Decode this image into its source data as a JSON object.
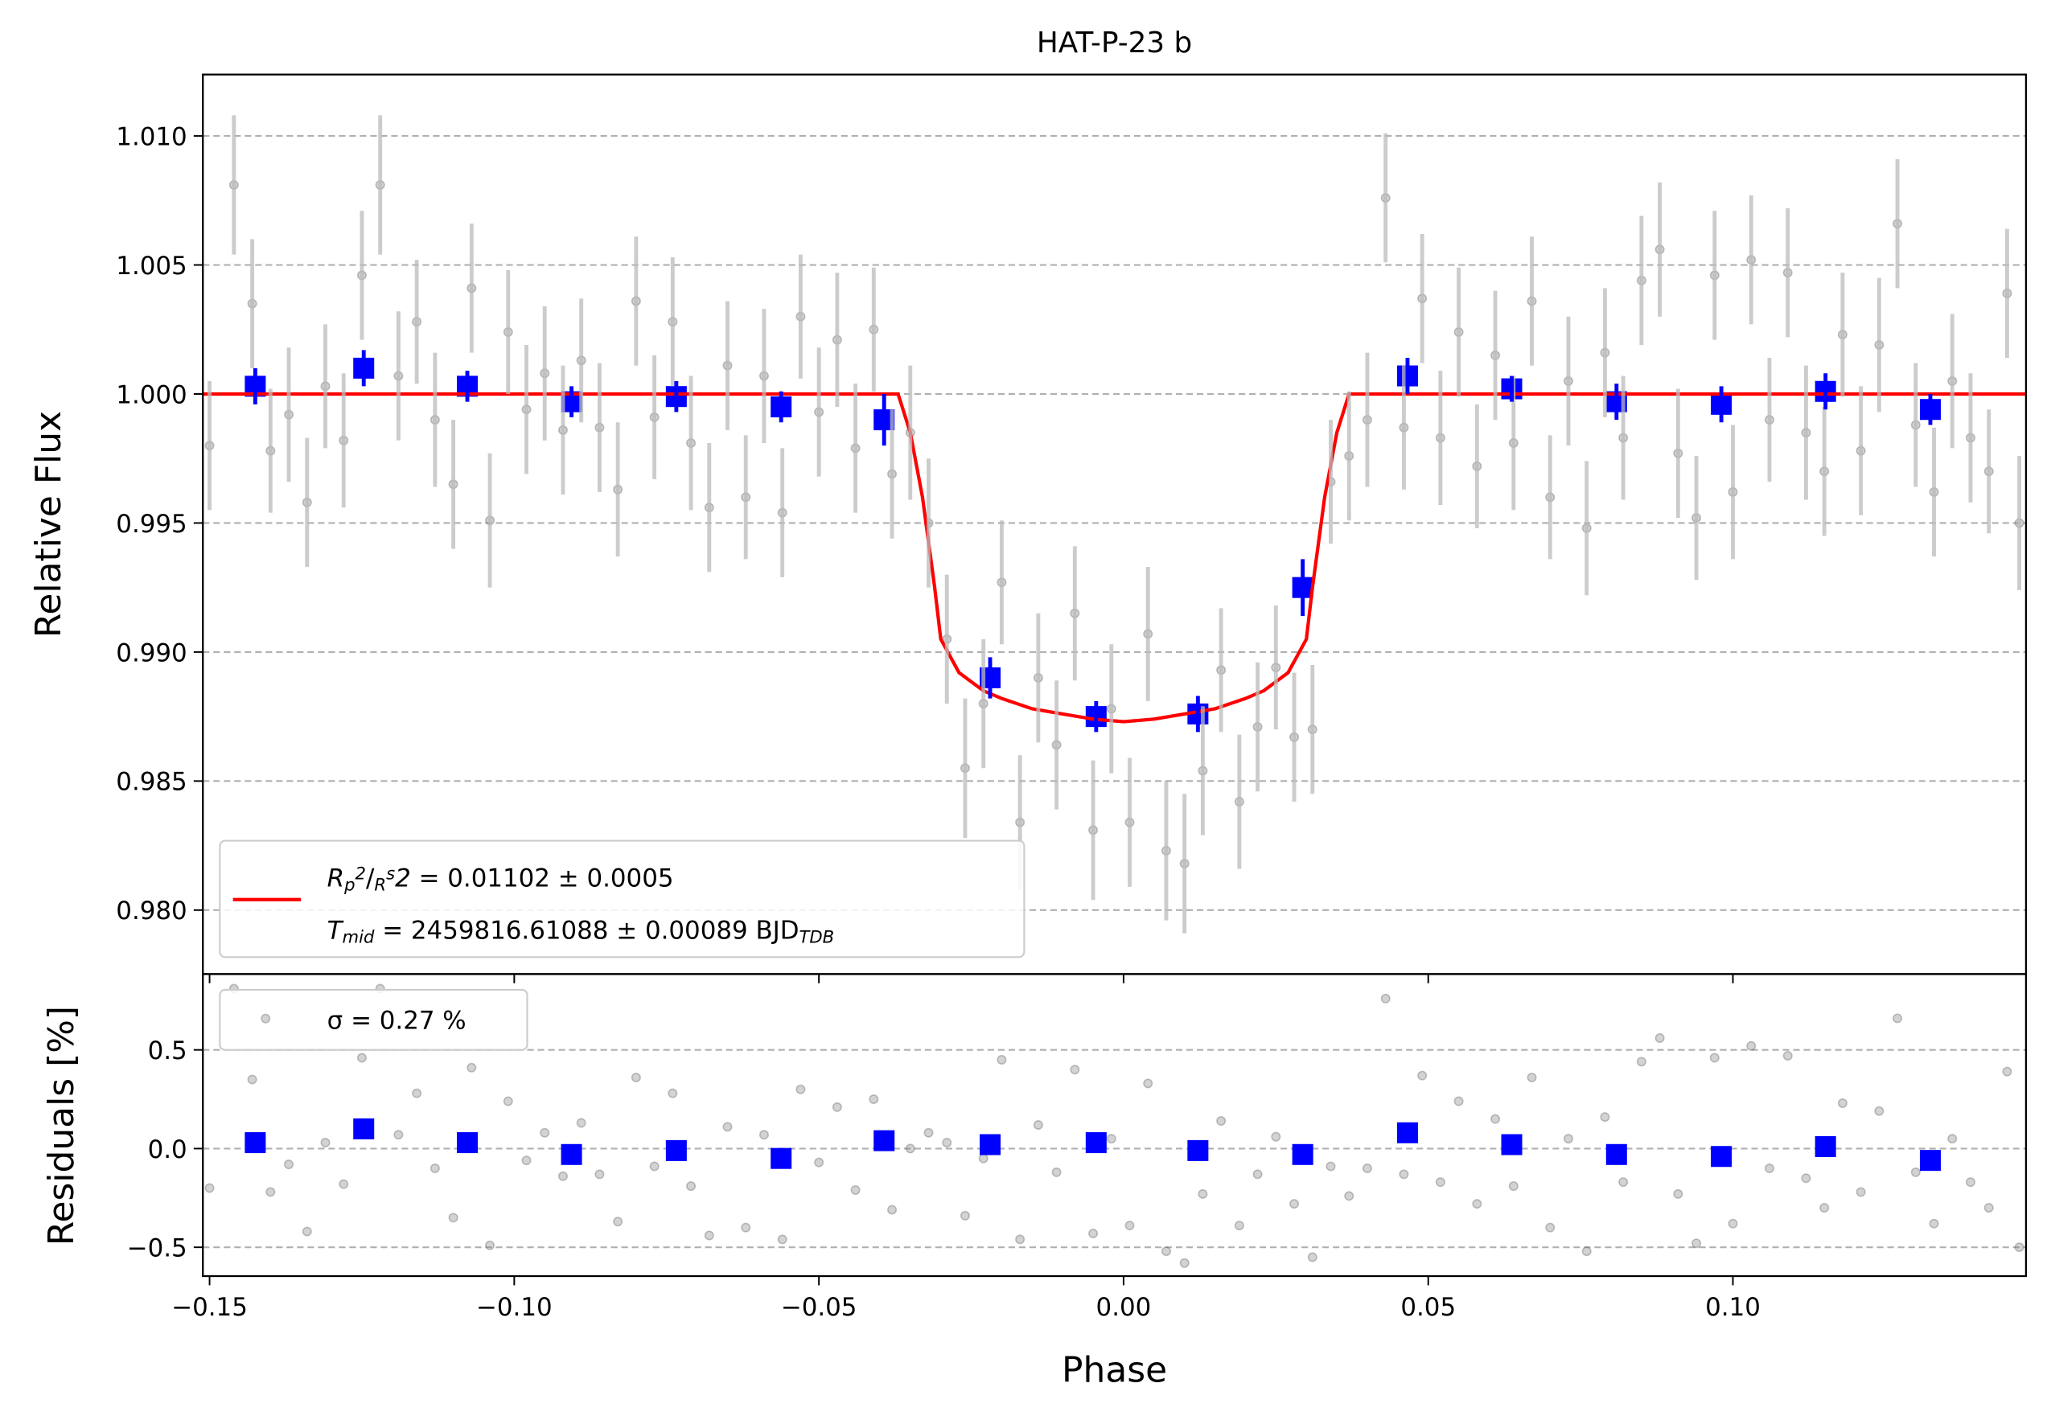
{
  "chart_data": [
    {
      "type": "scatter",
      "title": "HAT-P-23 b",
      "ylabel": "Relative Flux",
      "xlim": [
        -0.1511,
        0.1481
      ],
      "ylim": [
        0.97752,
        1.01238
      ],
      "yticks": [
        {
          "value": 0.98,
          "label": "0.980"
        },
        {
          "value": 0.985,
          "label": "0.985"
        },
        {
          "value": 0.99,
          "label": "0.990"
        },
        {
          "value": 0.995,
          "label": "0.995"
        },
        {
          "value": 1.0,
          "label": "1.000"
        },
        {
          "value": 1.005,
          "label": "1.005"
        },
        {
          "value": 1.01,
          "label": "1.010"
        }
      ],
      "grid": true,
      "legend": "lower left",
      "series": [
        {
          "type": "points",
          "marker": "circle",
          "color": "#808080",
          "x": [
            -0.15,
            -0.146,
            -0.143,
            -0.14,
            -0.137,
            -0.134,
            -0.131,
            -0.128,
            -0.125,
            -0.122,
            -0.119,
            -0.116,
            -0.113,
            -0.11,
            -0.107,
            -0.104,
            -0.101,
            -0.098,
            -0.095,
            -0.092,
            -0.089,
            -0.086,
            -0.083,
            -0.08,
            -0.077,
            -0.074,
            -0.071,
            -0.068,
            -0.065,
            -0.062,
            -0.059,
            -0.056,
            -0.053,
            -0.05,
            -0.047,
            -0.044,
            -0.041,
            -0.038,
            -0.035,
            -0.032,
            -0.029,
            -0.026,
            -0.023,
            -0.02,
            -0.017,
            -0.014,
            -0.011,
            -0.008,
            -0.005,
            -0.002,
            0.001,
            0.004,
            0.007,
            0.01,
            0.013,
            0.016,
            0.019,
            0.022,
            0.025,
            0.028,
            0.031,
            0.034,
            0.037,
            0.04,
            0.043,
            0.046,
            0.049,
            0.052,
            0.055,
            0.058,
            0.061,
            0.064,
            0.067,
            0.07,
            0.073,
            0.076,
            0.079,
            0.082,
            0.085,
            0.088,
            0.091,
            0.094,
            0.097,
            0.1,
            0.103,
            0.106,
            0.109,
            0.112,
            0.115,
            0.118,
            0.121,
            0.124,
            0.127,
            0.13,
            0.133,
            0.136,
            0.139,
            0.142,
            0.145,
            0.147
          ],
          "values": [
            0.998,
            1.0081,
            1.0035,
            0.9978,
            0.9992,
            0.9958,
            1.0003,
            0.9982,
            1.0046,
            1.0081,
            1.0007,
            1.0028,
            0.999,
            0.9965,
            1.0041,
            0.9951,
            1.0024,
            0.9994,
            1.0008,
            0.9986,
            1.0013,
            0.9987,
            0.9963,
            1.0036,
            0.9991,
            1.0028,
            0.9981,
            0.9956,
            1.0011,
            0.996,
            1.0007,
            0.9954,
            1.003,
            0.9993,
            1.0021,
            0.9979,
            1.0025,
            0.9969,
            0.9985,
            0.995,
            0.9905,
            0.9855,
            0.988,
            0.9927,
            0.9834,
            0.989,
            0.9864,
            0.9915,
            0.9831,
            0.9878,
            0.9834,
            0.9907,
            0.9823,
            0.9818,
            0.9854,
            0.9893,
            0.9842,
            0.9871,
            0.9894,
            0.9867,
            0.987,
            0.9966,
            0.9976,
            0.999,
            1.0076,
            0.9987,
            1.0037,
            0.9983,
            1.0024,
            0.9972,
            1.0015,
            0.9981,
            1.0036,
            0.996,
            1.0005,
            0.9948,
            1.0016,
            0.9983,
            1.0044,
            1.0056,
            0.9977,
            0.9952,
            1.0046,
            0.9962,
            1.0052,
            0.999,
            1.0047,
            0.9985,
            0.997,
            1.0023,
            0.9978,
            1.0019,
            1.0066,
            0.9988,
            0.9962,
            1.0005,
            0.9983,
            0.997,
            1.0039,
            0.995
          ],
          "errors": [
            0.0025,
            0.0027,
            0.0025,
            0.0024,
            0.0026,
            0.0025,
            0.0024,
            0.0026,
            0.0025,
            0.0027,
            0.0025,
            0.0024,
            0.0026,
            0.0025,
            0.0025,
            0.0026,
            0.0024,
            0.0025,
            0.0026,
            0.0025,
            0.0024,
            0.0025,
            0.0026,
            0.0025,
            0.0024,
            0.0025,
            0.0026,
            0.0025,
            0.0025,
            0.0024,
            0.0026,
            0.0025,
            0.0024,
            0.0025,
            0.0026,
            0.0025,
            0.0024,
            0.0025,
            0.0026,
            0.0025,
            0.0025,
            0.0027,
            0.0025,
            0.0024,
            0.0026,
            0.0025,
            0.0025,
            0.0026,
            0.0027,
            0.0025,
            0.0025,
            0.0026,
            0.0027,
            0.0027,
            0.0025,
            0.0024,
            0.0026,
            0.0025,
            0.0024,
            0.0025,
            0.0025,
            0.0024,
            0.0025,
            0.0026,
            0.0025,
            0.0024,
            0.0025,
            0.0026,
            0.0025,
            0.0024,
            0.0025,
            0.0026,
            0.0025,
            0.0024,
            0.0025,
            0.0026,
            0.0025,
            0.0024,
            0.0025,
            0.0026,
            0.0025,
            0.0024,
            0.0025,
            0.0026,
            0.0025,
            0.0024,
            0.0025,
            0.0026,
            0.0025,
            0.0024,
            0.0025,
            0.0026,
            0.0025,
            0.0024,
            0.0025,
            0.0026,
            0.0025,
            0.0024,
            0.0025,
            0.0026
          ]
        },
        {
          "type": "points",
          "marker": "square",
          "color": "#0000ff",
          "x": [
            -0.1425,
            -0.1247,
            -0.1077,
            -0.0906,
            -0.0734,
            -0.0562,
            -0.0393,
            -0.0219,
            -0.0045,
            0.0122,
            0.0294,
            0.0466,
            0.0637,
            0.0809,
            0.0981,
            0.1152,
            0.1324
          ],
          "values": [
            1.0003,
            1.001,
            1.0003,
            0.9997,
            0.9999,
            0.9995,
            0.999,
            0.989,
            0.9875,
            0.9876,
            0.9925,
            1.0007,
            1.0002,
            0.9997,
            0.9996,
            1.0001,
            0.9994
          ],
          "errors": [
            0.0007,
            0.0007,
            0.0006,
            0.0006,
            0.0006,
            0.0006,
            0.001,
            0.0008,
            0.0006,
            0.0007,
            0.0011,
            0.0007,
            0.0005,
            0.0007,
            0.0007,
            0.0007,
            0.0006
          ]
        },
        {
          "type": "line",
          "color": "#ff0000",
          "name": [
            [
              "R",
              "p",
              "2",
              "/",
              "R",
              "s",
              "2",
              " = 0.01102 ± 0.0005"
            ],
            [
              "T",
              "mid",
              " = 2459816.61088 ± 0.00089 BJD",
              "TDB"
            ]
          ],
          "x": [
            -0.1511,
            -0.037,
            -0.035,
            -0.033,
            -0.031,
            -0.03,
            -0.027,
            -0.023,
            -0.02,
            -0.015,
            -0.01,
            -0.005,
            0.0,
            0.005,
            0.01,
            0.015,
            0.02,
            0.023,
            0.027,
            0.03,
            0.031,
            0.033,
            0.035,
            0.037,
            0.1481
          ],
          "values": [
            1.0,
            1.0,
            0.9985,
            0.996,
            0.9925,
            0.9905,
            0.9892,
            0.9885,
            0.9882,
            0.9878,
            0.9876,
            0.9874,
            0.9873,
            0.9874,
            0.9876,
            0.9878,
            0.9882,
            0.9885,
            0.9892,
            0.9905,
            0.9925,
            0.996,
            0.9985,
            1.0,
            1.0
          ]
        }
      ]
    },
    {
      "type": "scatter",
      "xlabel": "Phase",
      "ylabel": "Residuals [%]",
      "xlim": [
        -0.1511,
        0.1481
      ],
      "ylim": [
        -0.646,
        0.884
      ],
      "xticks": [
        {
          "value": -0.15,
          "label": "−0.15"
        },
        {
          "value": -0.1,
          "label": "−0.10"
        },
        {
          "value": -0.05,
          "label": "−0.05"
        },
        {
          "value": 0,
          "label": "0.00"
        },
        {
          "value": 0.05,
          "label": "0.05"
        },
        {
          "value": 0.1,
          "label": "0.10"
        }
      ],
      "yticks": [
        {
          "value": -0.5,
          "label": "−0.5"
        },
        {
          "value": 0,
          "label": "0.0"
        },
        0.5
      ],
      "grid": true,
      "legend": "upper left",
      "series": [
        {
          "type": "points",
          "marker": "circle",
          "color": "#808080",
          "name": "σ = 0.27 %",
          "x": [
            -0.15,
            -0.146,
            -0.143,
            -0.14,
            -0.137,
            -0.134,
            -0.131,
            -0.128,
            -0.125,
            -0.122,
            -0.119,
            -0.116,
            -0.113,
            -0.11,
            -0.107,
            -0.104,
            -0.101,
            -0.098,
            -0.095,
            -0.092,
            -0.089,
            -0.086,
            -0.083,
            -0.08,
            -0.077,
            -0.074,
            -0.071,
            -0.068,
            -0.065,
            -0.062,
            -0.059,
            -0.056,
            -0.053,
            -0.05,
            -0.047,
            -0.044,
            -0.041,
            -0.038,
            -0.035,
            -0.032,
            -0.029,
            -0.026,
            -0.023,
            -0.02,
            -0.017,
            -0.014,
            -0.011,
            -0.008,
            -0.005,
            -0.002,
            0.001,
            0.004,
            0.007,
            0.01,
            0.013,
            0.016,
            0.019,
            0.022,
            0.025,
            0.028,
            0.031,
            0.034,
            0.037,
            0.04,
            0.043,
            0.046,
            0.049,
            0.052,
            0.055,
            0.058,
            0.061,
            0.064,
            0.067,
            0.07,
            0.073,
            0.076,
            0.079,
            0.082,
            0.085,
            0.088,
            0.091,
            0.094,
            0.097,
            0.1,
            0.103,
            0.106,
            0.109,
            0.112,
            0.115,
            0.118,
            0.121,
            0.124,
            0.127,
            0.13,
            0.133,
            0.136,
            0.139,
            0.142,
            0.145,
            0.147
          ],
          "values": [
            -0.2,
            0.81,
            0.35,
            -0.22,
            -0.08,
            -0.42,
            0.03,
            -0.18,
            0.46,
            0.81,
            0.07,
            0.28,
            -0.1,
            -0.35,
            0.41,
            -0.49,
            0.24,
            -0.06,
            0.08,
            -0.14,
            0.13,
            -0.13,
            -0.37,
            0.36,
            -0.09,
            0.28,
            -0.19,
            -0.44,
            0.11,
            -0.4,
            0.07,
            -0.46,
            0.3,
            -0.07,
            0.21,
            -0.21,
            0.25,
            -0.31,
            0.0,
            0.08,
            0.03,
            -0.34,
            -0.05,
            0.45,
            -0.46,
            0.12,
            -0.12,
            0.4,
            -0.43,
            0.05,
            -0.39,
            0.33,
            -0.52,
            -0.58,
            -0.23,
            0.14,
            -0.39,
            -0.13,
            0.06,
            -0.28,
            -0.55,
            -0.09,
            -0.24,
            -0.1,
            0.76,
            -0.13,
            0.37,
            -0.17,
            0.24,
            -0.28,
            0.15,
            -0.19,
            0.36,
            -0.4,
            0.05,
            -0.52,
            0.16,
            -0.17,
            0.44,
            0.56,
            -0.23,
            -0.48,
            0.46,
            -0.38,
            0.52,
            -0.1,
            0.47,
            -0.15,
            -0.3,
            0.23,
            -0.22,
            0.19,
            0.66,
            -0.12,
            -0.38,
            0.05,
            -0.17,
            -0.3,
            0.39,
            -0.5
          ]
        },
        {
          "type": "points",
          "marker": "square",
          "color": "#0000ff",
          "x": [
            -0.1425,
            -0.1247,
            -0.1077,
            -0.0906,
            -0.0734,
            -0.0562,
            -0.0393,
            -0.0219,
            -0.0045,
            0.0122,
            0.0294,
            0.0466,
            0.0637,
            0.0809,
            0.0981,
            0.1152,
            0.1324
          ],
          "values": [
            0.03,
            0.1,
            0.03,
            -0.03,
            -0.01,
            -0.05,
            0.04,
            0.02,
            0.03,
            -0.01,
            -0.03,
            0.08,
            0.02,
            -0.03,
            -0.04,
            0.01,
            -0.06
          ]
        }
      ]
    }
  ]
}
